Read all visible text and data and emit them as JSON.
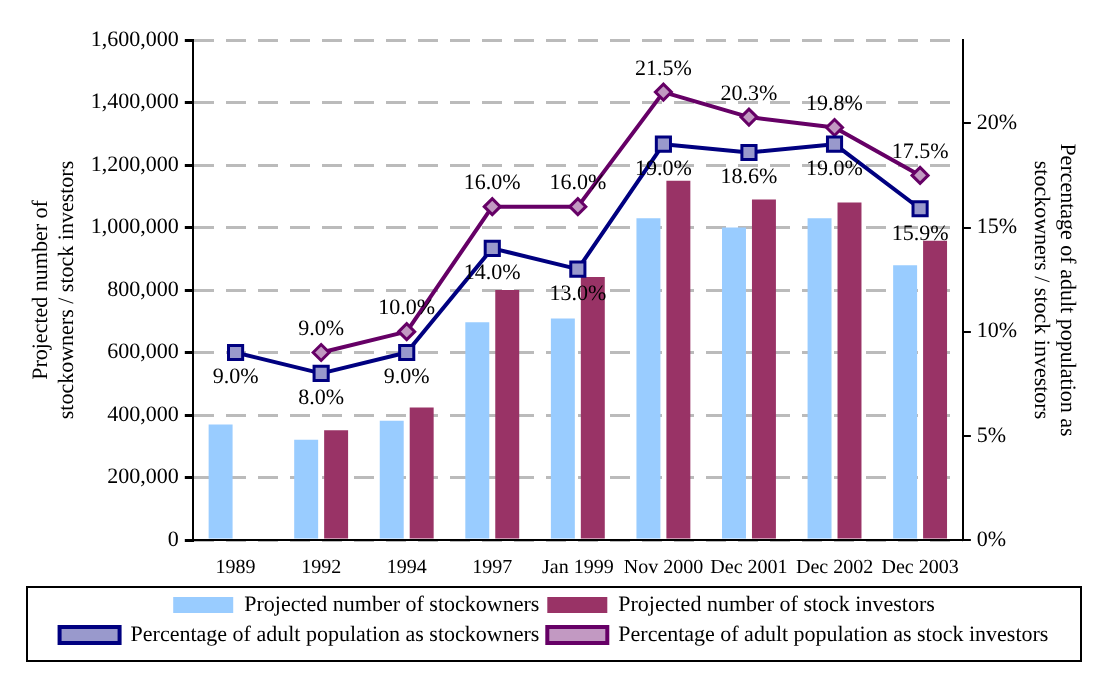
{
  "chart_data": {
    "type": "bar",
    "categories": [
      "1989",
      "1992",
      "1994",
      "1997",
      "Jan 1999",
      "Nov 2000",
      "Dec 2001",
      "Dec 2002",
      "Dec 2003"
    ],
    "ylabel": "Projected number of stockowners / stock investors",
    "y2label": "Percentage of adult population as stockowners / stock investors",
    "ylim": [
      0,
      1600000
    ],
    "yticks": [
      0,
      {
        "value": 200000,
        "label": "200,000"
      },
      {
        "value": 400000,
        "label": "400,000"
      },
      {
        "value": 600000,
        "label": "600,000"
      },
      {
        "value": 800000,
        "label": "800,000"
      },
      {
        "value": 1000000,
        "label": "1,000,000"
      },
      {
        "value": 1200000,
        "label": "1,200,000"
      },
      {
        "value": 1400000,
        "label": "1,400,000"
      },
      {
        "value": 1600000,
        "label": "1,600,000"
      }
    ],
    "y2lim": [
      0,
      24
    ],
    "y2ticks": [
      {
        "value": 0,
        "label": "0%"
      },
      {
        "value": 5,
        "label": "5%"
      },
      {
        "value": 10,
        "label": "10%"
      },
      {
        "value": 15,
        "label": "15%"
      },
      {
        "value": 20,
        "label": "20%"
      }
    ],
    "grid": "y",
    "legend": "bottom",
    "series": [
      {
        "name": "Projected number of stockowners",
        "color": "#99ccff",
        "values": [
          370000,
          321000,
          382000,
          697000,
          709000,
          1030000,
          1000000,
          1030000,
          879000
        ]
      },
      {
        "name": "Projected number of stock investors",
        "color": "#993366",
        "values": [
          null,
          351000,
          424000,
          800000,
          842000,
          1150000,
          1090000,
          1080000,
          958000
        ]
      },
      {
        "name": "Percentage of adult population as stockowners",
        "type": "line",
        "axis": "y2",
        "color": "#000080",
        "marker": "square",
        "values": [
          9,
          8,
          9,
          14,
          13,
          19,
          18.6,
          19,
          15.9
        ],
        "value_labels": [
          "9.0%",
          "8.0%",
          "9.0%",
          "14.0%",
          "13.0%",
          "19.0%",
          "18.6%",
          "19.0%",
          "15.9%"
        ]
      },
      {
        "name": "Percentage of adult population as stock investors",
        "type": "line",
        "axis": "y2",
        "color": "#660066",
        "marker": "diamond",
        "values": [
          null,
          9,
          10,
          16,
          16,
          21.5,
          20.3,
          19.8,
          17.5
        ],
        "value_labels": [
          null,
          "9.0%",
          "10.0%",
          "16.0%",
          "16.0%",
          "21.5%",
          "20.3%",
          "19.8%",
          "17.5%"
        ]
      }
    ]
  }
}
